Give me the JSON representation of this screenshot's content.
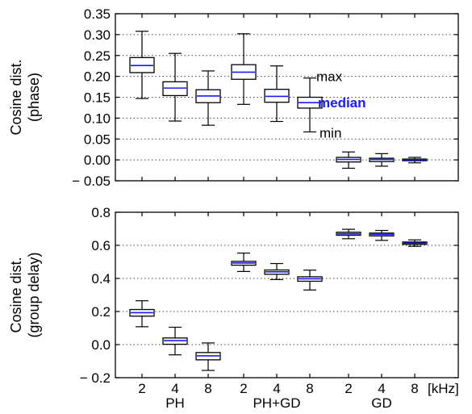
{
  "chart_data": [
    {
      "type": "box",
      "ylabel_lines": [
        "Cosine dist.",
        "(phase)"
      ],
      "ylim": [
        -0.05,
        0.35
      ],
      "yticks": [
        -0.05,
        0.0,
        0.05,
        0.1,
        0.15,
        0.2,
        0.25,
        0.3,
        0.35
      ],
      "ytick_labels": [
        "− 0.05",
        "0.00",
        "0.05",
        "0.10",
        "0.15",
        "0.20",
        "0.25",
        "0.30",
        "0.35"
      ],
      "grid": true,
      "groups": [
        "PH",
        "PH+GD",
        "GD"
      ],
      "categories": [
        "2",
        "4",
        "8"
      ],
      "boxes": [
        {
          "group": "PH",
          "category": "2",
          "min": 0.147,
          "q1": 0.209,
          "median": 0.226,
          "q3": 0.245,
          "max": 0.308
        },
        {
          "group": "PH",
          "category": "4",
          "min": 0.093,
          "q1": 0.154,
          "median": 0.172,
          "q3": 0.187,
          "max": 0.255
        },
        {
          "group": "PH",
          "category": "8",
          "min": 0.083,
          "q1": 0.137,
          "median": 0.153,
          "q3": 0.168,
          "max": 0.213
        },
        {
          "group": "PH+GD",
          "category": "2",
          "min": 0.133,
          "q1": 0.193,
          "median": 0.21,
          "q3": 0.228,
          "max": 0.302
        },
        {
          "group": "PH+GD",
          "category": "4",
          "min": 0.092,
          "q1": 0.138,
          "median": 0.152,
          "q3": 0.169,
          "max": 0.225
        },
        {
          "group": "PH+GD",
          "category": "8",
          "min": 0.067,
          "q1": 0.124,
          "median": 0.137,
          "q3": 0.15,
          "max": 0.196
        },
        {
          "group": "GD",
          "category": "2",
          "min": -0.02,
          "q1": -0.005,
          "median": 0.001,
          "q3": 0.006,
          "max": 0.019
        },
        {
          "group": "GD",
          "category": "4",
          "min": -0.015,
          "q1": -0.004,
          "median": 0.001,
          "q3": 0.004,
          "max": 0.015
        },
        {
          "group": "GD",
          "category": "8",
          "min": -0.007,
          "q1": -0.002,
          "median": 0.0,
          "q3": 0.002,
          "max": 0.006
        }
      ],
      "annotations": {
        "max": "max",
        "median": "median",
        "min": "min"
      }
    },
    {
      "type": "box",
      "ylabel_lines": [
        "Cosine dist.",
        "(group delay)"
      ],
      "ylim": [
        -0.2,
        0.8
      ],
      "yticks": [
        -0.2,
        0.0,
        0.2,
        0.4,
        0.6,
        0.8
      ],
      "ytick_labels": [
        "− 0.2",
        "0.0",
        "0.2",
        "0.4",
        "0.6",
        "0.8"
      ],
      "grid": true,
      "groups": [
        "PH",
        "PH+GD",
        "GD"
      ],
      "categories": [
        "2",
        "4",
        "8"
      ],
      "x_unit_label": "[kHz]",
      "boxes": [
        {
          "group": "PH",
          "category": "2",
          "min": 0.108,
          "q1": 0.172,
          "median": 0.193,
          "q3": 0.212,
          "max": 0.265
        },
        {
          "group": "PH",
          "category": "4",
          "min": -0.062,
          "q1": 0.002,
          "median": 0.024,
          "q3": 0.04,
          "max": 0.105
        },
        {
          "group": "PH",
          "category": "8",
          "min": -0.156,
          "q1": -0.092,
          "median": -0.068,
          "q3": -0.048,
          "max": 0.01
        },
        {
          "group": "PH+GD",
          "category": "2",
          "min": 0.442,
          "q1": 0.48,
          "median": 0.493,
          "q3": 0.503,
          "max": 0.553
        },
        {
          "group": "PH+GD",
          "category": "4",
          "min": 0.393,
          "q1": 0.425,
          "median": 0.44,
          "q3": 0.451,
          "max": 0.49
        },
        {
          "group": "PH+GD",
          "category": "8",
          "min": 0.33,
          "q1": 0.383,
          "median": 0.398,
          "q3": 0.41,
          "max": 0.45
        },
        {
          "group": "GD",
          "category": "2",
          "min": 0.64,
          "q1": 0.661,
          "median": 0.67,
          "q3": 0.679,
          "max": 0.697
        },
        {
          "group": "GD",
          "category": "4",
          "min": 0.63,
          "q1": 0.657,
          "median": 0.666,
          "q3": 0.674,
          "max": 0.69
        },
        {
          "group": "GD",
          "category": "8",
          "min": 0.594,
          "q1": 0.606,
          "median": 0.613,
          "q3": 0.62,
          "max": 0.633
        }
      ]
    }
  ]
}
